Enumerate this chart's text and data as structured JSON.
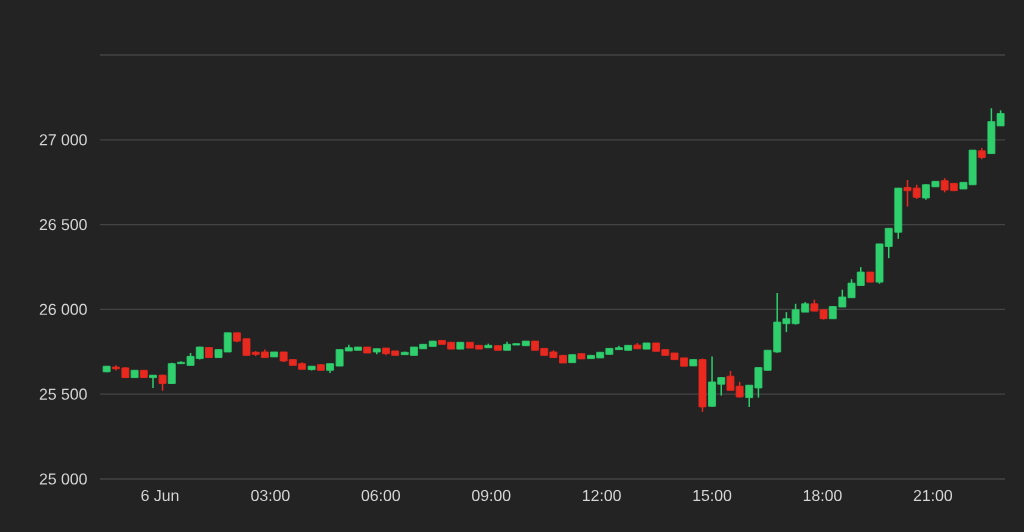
{
  "chart_data": {
    "type": "candlestick",
    "x": [
      -1.45,
      -1.2,
      -0.94,
      -0.69,
      -0.44,
      -0.19,
      0.07,
      0.32,
      0.57,
      0.83,
      1.08,
      1.33,
      1.59,
      1.84,
      2.09,
      2.35,
      2.6,
      2.85,
      3.1,
      3.36,
      3.61,
      3.86,
      4.12,
      4.37,
      4.62,
      4.88,
      5.13,
      5.38,
      5.63,
      5.89,
      6.14,
      6.39,
      6.65,
      6.9,
      7.15,
      7.41,
      7.66,
      7.91,
      8.16,
      8.42,
      8.67,
      8.92,
      9.18,
      9.43,
      9.68,
      9.94,
      10.19,
      10.44,
      10.69,
      10.95,
      11.2,
      11.45,
      11.71,
      11.96,
      12.21,
      12.47,
      12.72,
      12.97,
      13.22,
      13.48,
      13.73,
      13.98,
      14.24,
      14.49,
      14.74,
      15.0,
      15.25,
      15.5,
      15.75,
      16.01,
      16.26,
      16.51,
      16.77,
      17.02,
      17.27,
      17.53,
      17.78,
      18.03,
      18.28,
      18.54,
      18.79,
      19.04,
      19.3,
      19.55,
      19.8,
      20.06,
      20.31,
      20.56,
      20.81,
      21.07,
      21.32,
      21.57,
      21.83,
      22.08,
      22.33,
      22.59,
      22.84
    ],
    "ohlc": [
      [
        25632,
        25666,
        25630,
        25665
      ],
      [
        25660,
        25670,
        25640,
        25650
      ],
      [
        25655,
        25660,
        25595,
        25598
      ],
      [
        25598,
        25641,
        25598,
        25641
      ],
      [
        25641,
        25641,
        25598,
        25598
      ],
      [
        25598,
        25612,
        25537,
        25612
      ],
      [
        25612,
        25615,
        25520,
        25563
      ],
      [
        25563,
        25685,
        25560,
        25680
      ],
      [
        25680,
        25695,
        25680,
        25688
      ],
      [
        25670,
        25743,
        25670,
        25723
      ],
      [
        25710,
        25780,
        25705,
        25778
      ],
      [
        25775,
        25775,
        25716,
        25716
      ],
      [
        25716,
        25763,
        25716,
        25763
      ],
      [
        25749,
        25862,
        25749,
        25862
      ],
      [
        25862,
        25862,
        25806,
        25813
      ],
      [
        25827,
        25827,
        25729,
        25729
      ],
      [
        25747,
        25755,
        25725,
        25735
      ],
      [
        25749,
        25763,
        25716,
        25716
      ],
      [
        25720,
        25749,
        25720,
        25749
      ],
      [
        25749,
        25749,
        25690,
        25696
      ],
      [
        25704,
        25704,
        25670,
        25670
      ],
      [
        25680,
        25688,
        25647,
        25647
      ],
      [
        25645,
        25665,
        25640,
        25665
      ],
      [
        25674,
        25674,
        25641,
        25641
      ],
      [
        25641,
        25680,
        25625,
        25680
      ],
      [
        25666,
        25763,
        25666,
        25763
      ],
      [
        25755,
        25792,
        25755,
        25774
      ],
      [
        25759,
        25778,
        25759,
        25778
      ],
      [
        25778,
        25778,
        25743,
        25743
      ],
      [
        25749,
        25768,
        25735,
        25768
      ],
      [
        25772,
        25772,
        25729,
        25739
      ],
      [
        25755,
        25755,
        25729,
        25729
      ],
      [
        25733,
        25751,
        25733,
        25747
      ],
      [
        25729,
        25778,
        25729,
        25778
      ],
      [
        25768,
        25794,
        25768,
        25794
      ],
      [
        25782,
        25813,
        25782,
        25813
      ],
      [
        25817,
        25817,
        25794,
        25794
      ],
      [
        25806,
        25806,
        25766,
        25766
      ],
      [
        25766,
        25806,
        25766,
        25806
      ],
      [
        25806,
        25806,
        25772,
        25772
      ],
      [
        25788,
        25788,
        25766,
        25766
      ],
      [
        25774,
        25798,
        25774,
        25788
      ],
      [
        25786,
        25786,
        25759,
        25759
      ],
      [
        25759,
        25810,
        25759,
        25794
      ],
      [
        25790,
        25798,
        25790,
        25798
      ],
      [
        25786,
        25813,
        25786,
        25813
      ],
      [
        25813,
        25813,
        25759,
        25759
      ],
      [
        25770,
        25770,
        25729,
        25729
      ],
      [
        25749,
        25759,
        25716,
        25716
      ],
      [
        25729,
        25729,
        25684,
        25684
      ],
      [
        25686,
        25733,
        25686,
        25733
      ],
      [
        25739,
        25739,
        25708,
        25708
      ],
      [
        25710,
        25729,
        25710,
        25729
      ],
      [
        25714,
        25747,
        25714,
        25747
      ],
      [
        25735,
        25770,
        25735,
        25770
      ],
      [
        25763,
        25786,
        25763,
        25774
      ],
      [
        25759,
        25788,
        25759,
        25788
      ],
      [
        25790,
        25802,
        25768,
        25768
      ],
      [
        25766,
        25802,
        25766,
        25802
      ],
      [
        25802,
        25802,
        25753,
        25753
      ],
      [
        25763,
        25763,
        25729,
        25729
      ],
      [
        25743,
        25743,
        25704,
        25704
      ],
      [
        25714,
        25714,
        25665,
        25665
      ],
      [
        25667,
        25704,
        25667,
        25704
      ],
      [
        25704,
        25710,
        25396,
        25425
      ],
      [
        25429,
        25723,
        25425,
        25572
      ],
      [
        25559,
        25600,
        25492,
        25598
      ],
      [
        25606,
        25637,
        25523,
        25523
      ],
      [
        25547,
        25572,
        25480,
        25484
      ],
      [
        25480,
        25553,
        25425,
        25553
      ],
      [
        25537,
        25657,
        25480,
        25657
      ],
      [
        25641,
        25759,
        25641,
        25759
      ],
      [
        25749,
        26096,
        25745,
        25925
      ],
      [
        25916,
        25984,
        25866,
        25945
      ],
      [
        25916,
        26033,
        25910,
        25998
      ],
      [
        25984,
        26043,
        25984,
        26033
      ],
      [
        26033,
        26057,
        25990,
        25990
      ],
      [
        25998,
        25998,
        25940,
        25945
      ],
      [
        25945,
        26017,
        25945,
        26017
      ],
      [
        26014,
        26116,
        26014,
        26073
      ],
      [
        26069,
        26178,
        26069,
        26155
      ],
      [
        26141,
        26249,
        26141,
        26220
      ],
      [
        26220,
        26220,
        26161,
        26161
      ],
      [
        26161,
        26386,
        26151,
        26386
      ],
      [
        26371,
        26478,
        26302,
        26478
      ],
      [
        26455,
        26715,
        26416,
        26715
      ],
      [
        26719,
        26763,
        26606,
        26700
      ],
      [
        26715,
        26735,
        26651,
        26661
      ],
      [
        26657,
        26740,
        26647,
        26735
      ],
      [
        26723,
        26755,
        26723,
        26755
      ],
      [
        26759,
        26774,
        26690,
        26704
      ],
      [
        26743,
        26743,
        26700,
        26700
      ],
      [
        26710,
        26749,
        26710,
        26749
      ],
      [
        26735,
        26939,
        26735,
        26939
      ],
      [
        26935,
        26951,
        26886,
        26896
      ],
      [
        26919,
        27186,
        26919,
        27107
      ],
      [
        27082,
        27174,
        27082,
        27155
      ]
    ],
    "xlim": [
      -1.63,
      22.96
    ],
    "xticks": [
      {
        "value": 0,
        "label": "6 Jun"
      },
      {
        "value": 3,
        "label": "03:00"
      },
      {
        "value": 6,
        "label": "06:00"
      },
      {
        "value": 9,
        "label": "09:00"
      },
      {
        "value": 12,
        "label": "12:00"
      },
      {
        "value": 15,
        "label": "15:00"
      },
      {
        "value": 18,
        "label": "18:00"
      },
      {
        "value": 21,
        "label": "21:00"
      }
    ],
    "ylim": [
      25000,
      27500
    ],
    "yticks": [
      {
        "value": 25000,
        "label": "25 000"
      },
      {
        "value": 25500,
        "label": "25 500"
      },
      {
        "value": 26000,
        "label": "26 000"
      },
      {
        "value": 26500,
        "label": "26 500"
      },
      {
        "value": 27000,
        "label": "27 000"
      },
      {
        "value": 27500,
        "label": null
      }
    ],
    "grid": "y"
  }
}
